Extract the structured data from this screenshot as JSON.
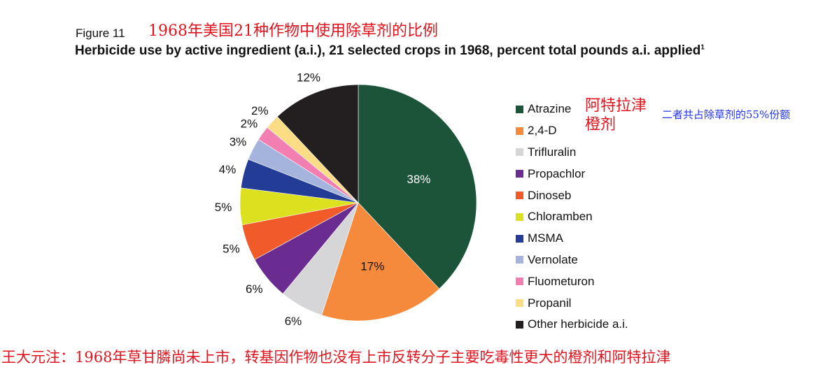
{
  "figure_label": "Figure 11",
  "cn_title": "1968年美国21种作物中使用除草剂的比例",
  "title": "Herbicide use by active ingredient (a.i.), 21 selected crops in 1968, percent total pounds a.i. applied",
  "title_sup": "1",
  "annotations": {
    "red": [
      "阿特拉津",
      "橙剂"
    ],
    "blue": "二者共占除草剂的55%份额"
  },
  "footnote": "王大元注：1968年草甘膦尚未上市，转基因作物也没有上市反转分子主要吃毒性更大的橙剂和阿特拉津",
  "chart_data": {
    "type": "pie",
    "title": "Herbicide use by active ingredient (a.i.), 21 selected crops in 1968, percent total pounds a.i. applied",
    "legend_position": "right",
    "slices": [
      {
        "label": "Atrazine",
        "value": 38,
        "display": "38%",
        "color": "#1b5439"
      },
      {
        "label": "2,4-D",
        "value": 17,
        "display": "17%",
        "color": "#f58a3c"
      },
      {
        "label": "Trifluralin",
        "value": 6,
        "display": "6%",
        "color": "#d6d6d8"
      },
      {
        "label": "Propachlor",
        "value": 6,
        "display": "6%",
        "color": "#6a2c91"
      },
      {
        "label": "Dinoseb",
        "value": 5,
        "display": "5%",
        "color": "#f15a29"
      },
      {
        "label": "Chloramben",
        "value": 5,
        "display": "5%",
        "color": "#dce11f"
      },
      {
        "label": "MSMA",
        "value": 4,
        "display": "4%",
        "color": "#233c95"
      },
      {
        "label": "Vernolate",
        "value": 3,
        "display": "3%",
        "color": "#a5b4dc"
      },
      {
        "label": "Fluometuron",
        "value": 2,
        "display": "2%",
        "color": "#f27eb2"
      },
      {
        "label": "Propanil",
        "value": 2,
        "display": "2%",
        "color": "#fcdc84"
      },
      {
        "label": "Other herbicide a.i.",
        "value": 12,
        "display": "12%",
        "color": "#231f20"
      }
    ]
  }
}
